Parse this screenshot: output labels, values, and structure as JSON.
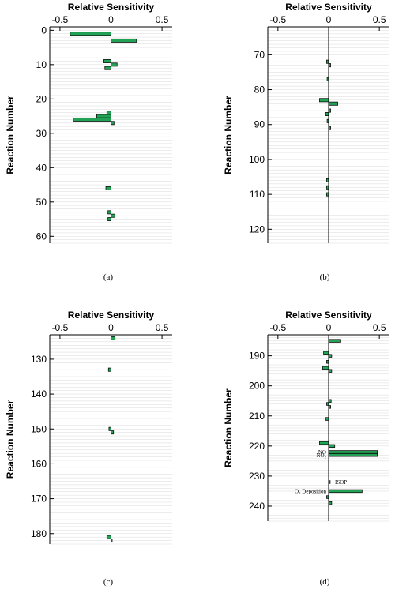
{
  "chart_data": [
    {
      "type": "bar",
      "orientation": "horizontal",
      "panel_label": "(a)",
      "title": "Relative Sensitivity",
      "xlabel": "Relative Sensitivity",
      "ylabel": "Reaction Number",
      "xlim": [
        -0.6,
        0.6
      ],
      "ylim": [
        -1,
        62
      ],
      "xticks": [
        -0.5,
        0,
        0.5
      ],
      "xtick_labels": [
        "-0.5",
        "0",
        "0.5"
      ],
      "yticks": [
        0,
        10,
        20,
        30,
        40,
        50,
        60
      ],
      "grid": true,
      "bars": [
        {
          "reaction": 1,
          "value": -0.4
        },
        {
          "reaction": 3,
          "value": 0.25
        },
        {
          "reaction": 9,
          "value": -0.07
        },
        {
          "reaction": 10,
          "value": 0.06
        },
        {
          "reaction": 11,
          "value": -0.06
        },
        {
          "reaction": 24,
          "value": -0.04
        },
        {
          "reaction": 25,
          "value": -0.14
        },
        {
          "reaction": 26,
          "value": -0.37
        },
        {
          "reaction": 27,
          "value": 0.03
        },
        {
          "reaction": 46,
          "value": -0.05
        },
        {
          "reaction": 53,
          "value": -0.03
        },
        {
          "reaction": 54,
          "value": 0.04
        },
        {
          "reaction": 55,
          "value": -0.03
        }
      ]
    },
    {
      "type": "bar",
      "orientation": "horizontal",
      "panel_label": "(b)",
      "title": "Relative Sensitivity",
      "xlabel": "Relative Sensitivity",
      "ylabel": "Reaction Number",
      "xlim": [
        -0.6,
        0.6
      ],
      "ylim": [
        62,
        124
      ],
      "xticks": [
        -0.5,
        0,
        0.5
      ],
      "xtick_labels": [
        "-0.5",
        "0",
        "0.5"
      ],
      "yticks": [
        70,
        80,
        90,
        100,
        110,
        120
      ],
      "grid": true,
      "bars": [
        {
          "reaction": 72,
          "value": -0.02
        },
        {
          "reaction": 73,
          "value": 0.02
        },
        {
          "reaction": 77,
          "value": -0.015
        },
        {
          "reaction": 83,
          "value": -0.09
        },
        {
          "reaction": 84,
          "value": 0.09
        },
        {
          "reaction": 86,
          "value": 0.02
        },
        {
          "reaction": 87,
          "value": -0.03
        },
        {
          "reaction": 89,
          "value": -0.015
        },
        {
          "reaction": 91,
          "value": 0.02
        },
        {
          "reaction": 106,
          "value": -0.02
        },
        {
          "reaction": 108,
          "value": -0.02
        },
        {
          "reaction": 110,
          "value": -0.02
        }
      ]
    },
    {
      "type": "bar",
      "orientation": "horizontal",
      "panel_label": "(c)",
      "title": "Relative Sensitivity",
      "xlabel": "Relative Sensitivity",
      "ylabel": "Reaction Number",
      "xlim": [
        -0.6,
        0.6
      ],
      "ylim": [
        123,
        183
      ],
      "xticks": [
        -0.5,
        0,
        0.5
      ],
      "xtick_labels": [
        "-0.5",
        "0",
        "0.5"
      ],
      "yticks": [
        130,
        140,
        150,
        160,
        170,
        180
      ],
      "grid": true,
      "bars": [
        {
          "reaction": 124,
          "value": 0.04
        },
        {
          "reaction": 133,
          "value": -0.025
        },
        {
          "reaction": 150,
          "value": -0.02
        },
        {
          "reaction": 151,
          "value": 0.025
        },
        {
          "reaction": 181,
          "value": -0.04
        },
        {
          "reaction": 182,
          "value": 0.01
        }
      ]
    },
    {
      "type": "bar",
      "orientation": "horizontal",
      "panel_label": "(d)",
      "title": "Relative Sensitivity",
      "xlabel": "Relative Sensitivity",
      "ylabel": "Reaction Number",
      "xlim": [
        -0.6,
        0.6
      ],
      "ylim": [
        183,
        245
      ],
      "xticks": [
        -0.5,
        0,
        0.5
      ],
      "xtick_labels": [
        "-0.5",
        "0",
        "0.5"
      ],
      "yticks": [
        190,
        200,
        210,
        220,
        230,
        240
      ],
      "grid": true,
      "bars": [
        {
          "reaction": 185,
          "value": 0.12
        },
        {
          "reaction": 189,
          "value": -0.05
        },
        {
          "reaction": 190,
          "value": 0.03
        },
        {
          "reaction": 192,
          "value": -0.02
        },
        {
          "reaction": 194,
          "value": -0.06
        },
        {
          "reaction": 195,
          "value": 0.03
        },
        {
          "reaction": 205,
          "value": 0.025
        },
        {
          "reaction": 206,
          "value": -0.02
        },
        {
          "reaction": 207,
          "value": 0.02
        },
        {
          "reaction": 211,
          "value": -0.03
        },
        {
          "reaction": 219,
          "value": -0.09
        },
        {
          "reaction": 220,
          "value": 0.06
        },
        {
          "reaction": 222,
          "value": 0.48
        },
        {
          "reaction": 223,
          "value": 0.48
        },
        {
          "reaction": 232,
          "value": 0.015
        },
        {
          "reaction": 235,
          "value": 0.33
        },
        {
          "reaction": 237,
          "value": -0.02
        },
        {
          "reaction": 239,
          "value": 0.03
        }
      ],
      "annotations": [
        {
          "reaction": 222,
          "text": "NO",
          "side": "left"
        },
        {
          "reaction": 223,
          "text": "NO₂",
          "side": "left"
        },
        {
          "reaction": 232,
          "text": "ISOP",
          "side": "right"
        },
        {
          "reaction": 235,
          "text": "O₃ Deposition",
          "side": "left"
        }
      ]
    }
  ],
  "style": {
    "bar_fill": "#21a255",
    "bar_stroke": "#111111",
    "grid_color": "#cfcfcf",
    "axis_color": "#000000"
  }
}
